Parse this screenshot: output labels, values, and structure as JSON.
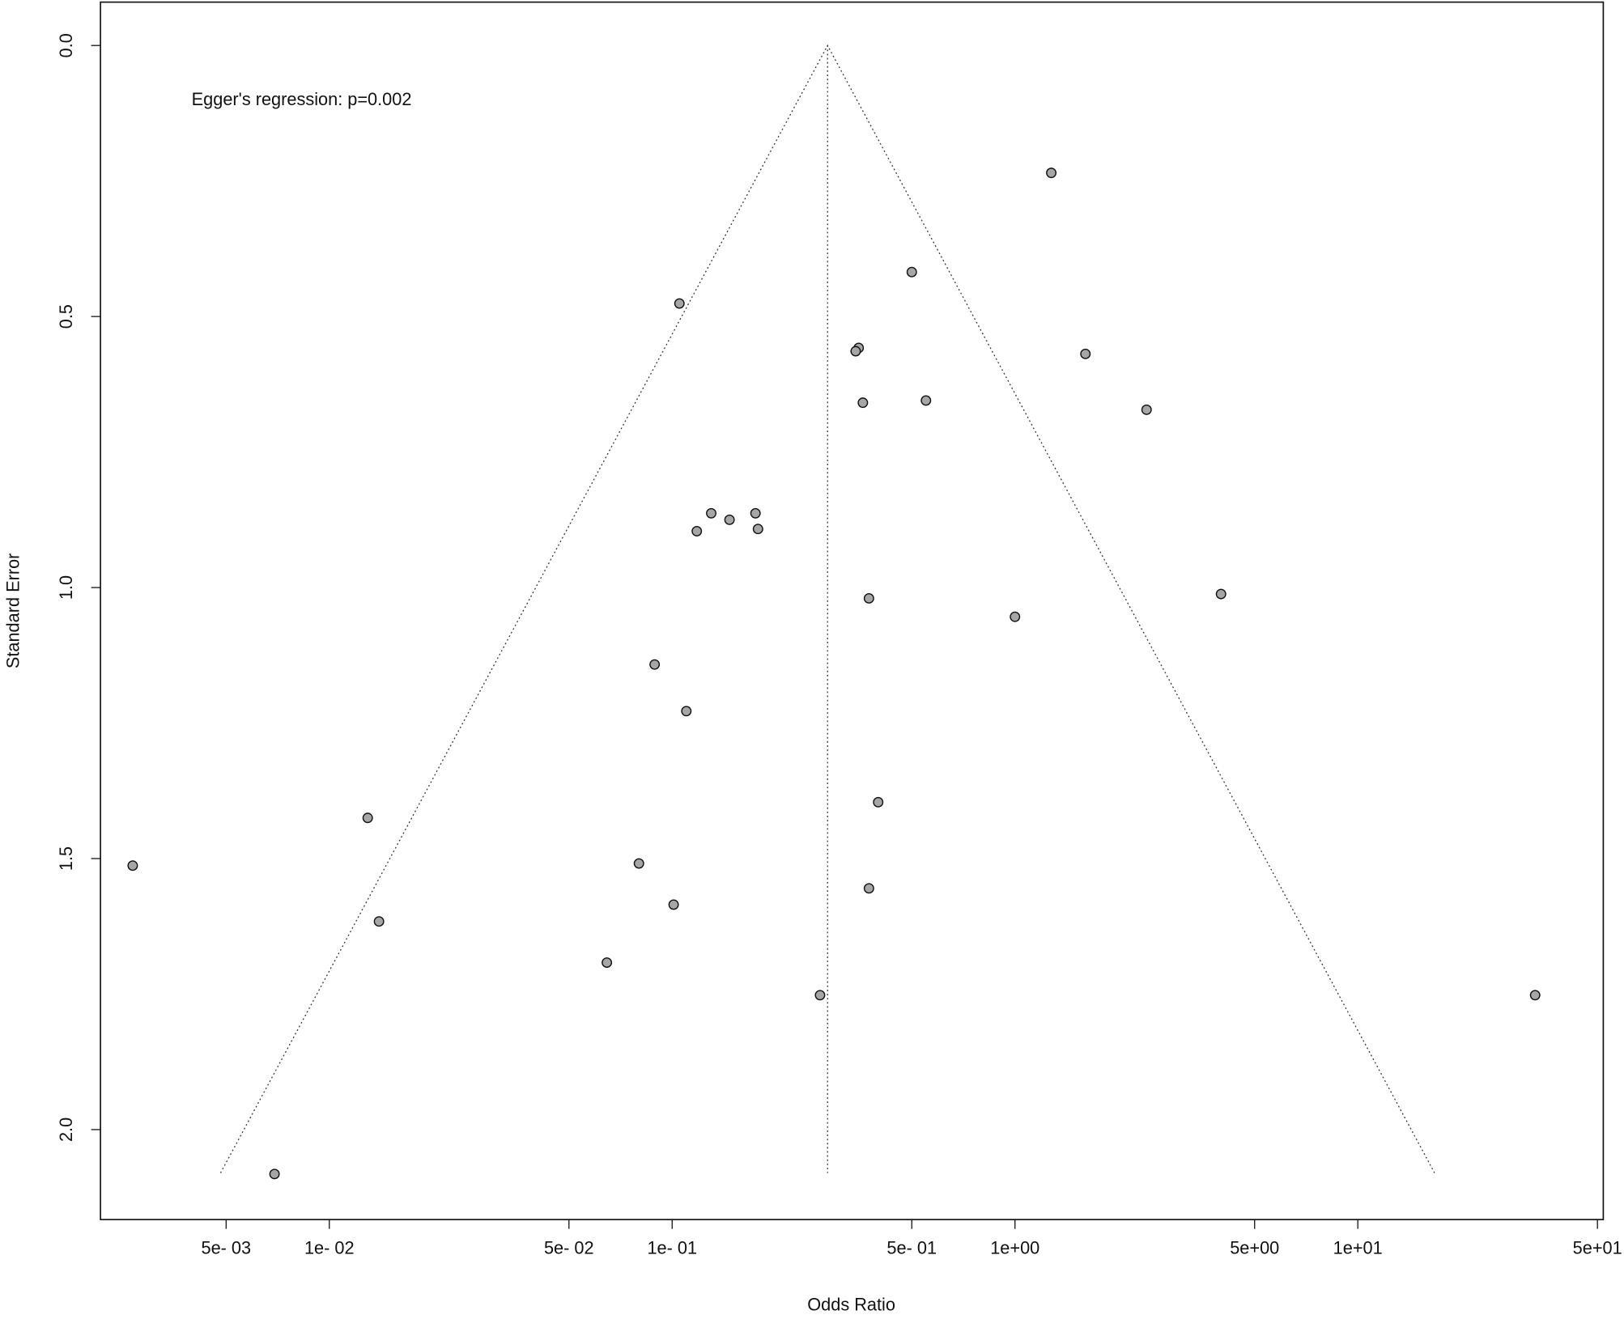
{
  "chart_data": {
    "type": "scatter",
    "annotation": "Egger's regression: p=0.002",
    "x_label": "Odds Ratio",
    "y_label": "Standard Error",
    "x_log": true,
    "y_reversed": true,
    "xlim": [
      0.00215,
      52
    ],
    "ylim": [
      -0.08,
      2.166
    ],
    "xticks": [
      {
        "value": 0.005,
        "label": "5e- 03"
      },
      {
        "value": 0.01,
        "label": "1e- 02"
      },
      {
        "value": 0.05,
        "label": "5e- 02"
      },
      {
        "value": 0.1,
        "label": "1e- 01"
      },
      {
        "value": 0.5,
        "label": "5e- 01"
      },
      {
        "value": 1,
        "label": "1e+00"
      },
      {
        "value": 5,
        "label": "5e+00"
      },
      {
        "value": 10,
        "label": "1e+01"
      },
      {
        "value": 50,
        "label": "5e+01"
      }
    ],
    "yticks": [
      {
        "value": 0,
        "label": "0.0"
      },
      0.5,
      {
        "value": 1,
        "label": "1.0"
      },
      1.5,
      {
        "value": 2,
        "label": "2.0"
      }
    ],
    "funnel": {
      "center": 0.284,
      "se_max": 2.08,
      "z": 1.96
    },
    "series": [
      {
        "name": "Studies",
        "color": "#a6a6a6",
        "x": [
          1.276,
          0.5,
          0.105,
          0.35,
          0.343,
          1.605,
          0.36,
          0.55,
          2.42,
          0.13,
          0.175,
          0.147,
          0.118,
          0.178,
          0.375,
          3.99,
          1.0,
          0.0889,
          0.11,
          0.01294,
          0.399,
          0.00267,
          0.08,
          0.375,
          0.101,
          0.01396,
          0.0645,
          0.27,
          32.9,
          0.00692
        ],
        "values": [
          0.235,
          0.418,
          0.476,
          0.558,
          0.564,
          0.569,
          0.659,
          0.655,
          0.672,
          0.863,
          0.863,
          0.875,
          0.896,
          0.892,
          1.02,
          1.012,
          1.054,
          1.142,
          1.228,
          1.425,
          1.396,
          1.513,
          1.509,
          1.555,
          1.585,
          1.616,
          1.692,
          1.752,
          1.752,
          2.082
        ]
      }
    ]
  }
}
